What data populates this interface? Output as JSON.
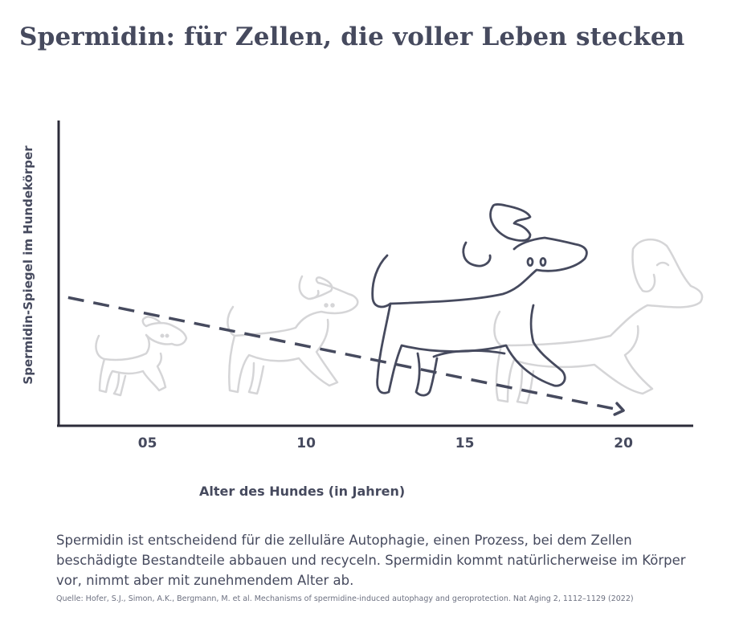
{
  "title": "Spermidin: für Zellen, die voller Leben stecken",
  "chart_data": {
    "type": "line",
    "ylabel": "Spermidin-Spiegel im Hundekörper",
    "xlabel": "Alter des Hundes (in Jahren)",
    "x_ticks": [
      "05",
      "10",
      "15",
      "20"
    ],
    "xlim": [
      2.2,
      22.2
    ],
    "ylim": [
      0,
      10
    ],
    "y_ticks_shown": false,
    "grid": false,
    "legend": "none",
    "series": [
      {
        "x": [
          2.5,
          20
        ],
        "y": [
          4.2,
          0.5
        ],
        "style": "dashed-arrow",
        "color": "#464a5e"
      }
    ]
  },
  "description": "Spermidin ist entscheidend für die zelluläre Autophagie, einen Prozess, bei dem Zellen beschädigte Bestandteile abbauen und recyceln. Spermidin kommt natürlicherweise im Körper vor, nimmt aber mit zunehmendem Alter ab.",
  "source": "Quelle: Hofer, S.J., Simon, A.K., Bergmann, M. et al. Mechanisms of spermidine-induced autophagy and geroprotection. Nat Aging 2, 1112–1129 (2022)",
  "colors": {
    "text": "#464a5e",
    "dog_faded": "#d5d5d7",
    "dog_active": "#464a5e"
  },
  "illustrations": [
    "puppy-dog-icon",
    "young-dog-icon",
    "adult-dog-icon",
    "senior-dog-icon"
  ]
}
